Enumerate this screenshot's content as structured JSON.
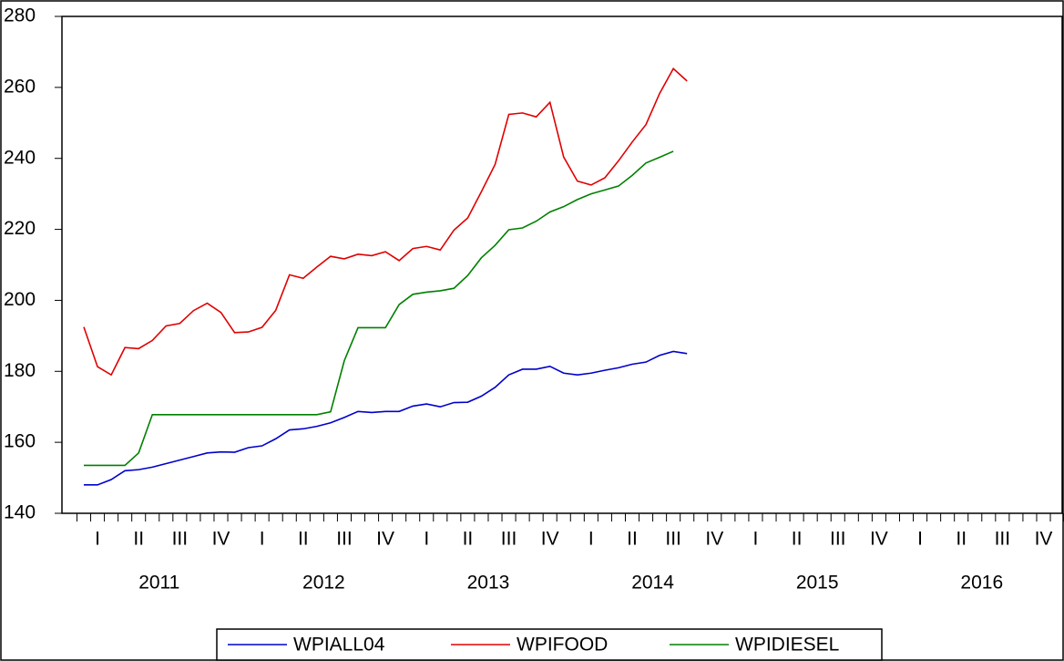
{
  "chart_data": {
    "type": "line",
    "quarter_labels": [
      "I",
      "II",
      "III",
      "IV",
      "I",
      "II",
      "III",
      "IV",
      "I",
      "II",
      "III",
      "IV",
      "I",
      "II",
      "III",
      "IV",
      "I",
      "II",
      "III",
      "IV",
      "I",
      "II",
      "III",
      "IV"
    ],
    "years": [
      "2011",
      "2012",
      "2013",
      "2014",
      "2015",
      "2016"
    ],
    "ylim": [
      140,
      280
    ],
    "yticks": [
      140,
      160,
      180,
      200,
      220,
      240,
      260,
      280
    ],
    "series": [
      {
        "name": "WPIALL04",
        "color": "#0000cc",
        "values": [
          148,
          148,
          149.5,
          152,
          152.3,
          153,
          154,
          155,
          156,
          157,
          157.3,
          157.2,
          158.5,
          159,
          161,
          163.5,
          163.8,
          164.5,
          165.5,
          167,
          168.7,
          168.4,
          168.7,
          168.7,
          170.2,
          170.8,
          170,
          171.2,
          171.3,
          173,
          175.5,
          179,
          180.6,
          180.6,
          181.4,
          179.5,
          179,
          179.5,
          180.3,
          181,
          182,
          182.6,
          184.5,
          185.6,
          185
        ]
      },
      {
        "name": "WPIFOOD",
        "color": "#e00000",
        "values": [
          192.5,
          181.3,
          179,
          186.7,
          186.4,
          188.7,
          192.8,
          193.5,
          197.1,
          199.2,
          196.6,
          190.9,
          191.1,
          192.4,
          197.2,
          207.2,
          206.2,
          209.4,
          212.4,
          211.7,
          213,
          212.6,
          213.7,
          211.2,
          214.6,
          215.2,
          214.2,
          219.8,
          223.2,
          230.6,
          238.3,
          252.4,
          252.8,
          251.7,
          255.8,
          240.4,
          233.6,
          232.5,
          234.5,
          239.3,
          244.6,
          249.5,
          258.3,
          265.3,
          261.8
        ]
      },
      {
        "name": "WPIDIESEL",
        "color": "#008000",
        "values": [
          153.5,
          153.5,
          153.5,
          153.5,
          157,
          167.8,
          167.8,
          167.8,
          167.8,
          167.8,
          167.8,
          167.8,
          167.8,
          167.8,
          167.8,
          167.8,
          167.8,
          167.8,
          168.6,
          183,
          192.3,
          192.3,
          192.3,
          198.8,
          201.7,
          202.3,
          202.7,
          203.4,
          207,
          212,
          215.5,
          219.9,
          220.4,
          222.3,
          224.9,
          226.4,
          228.4,
          230,
          231.1,
          232.2,
          235.2,
          238.7,
          240.3,
          242,
          null
        ]
      }
    ]
  }
}
